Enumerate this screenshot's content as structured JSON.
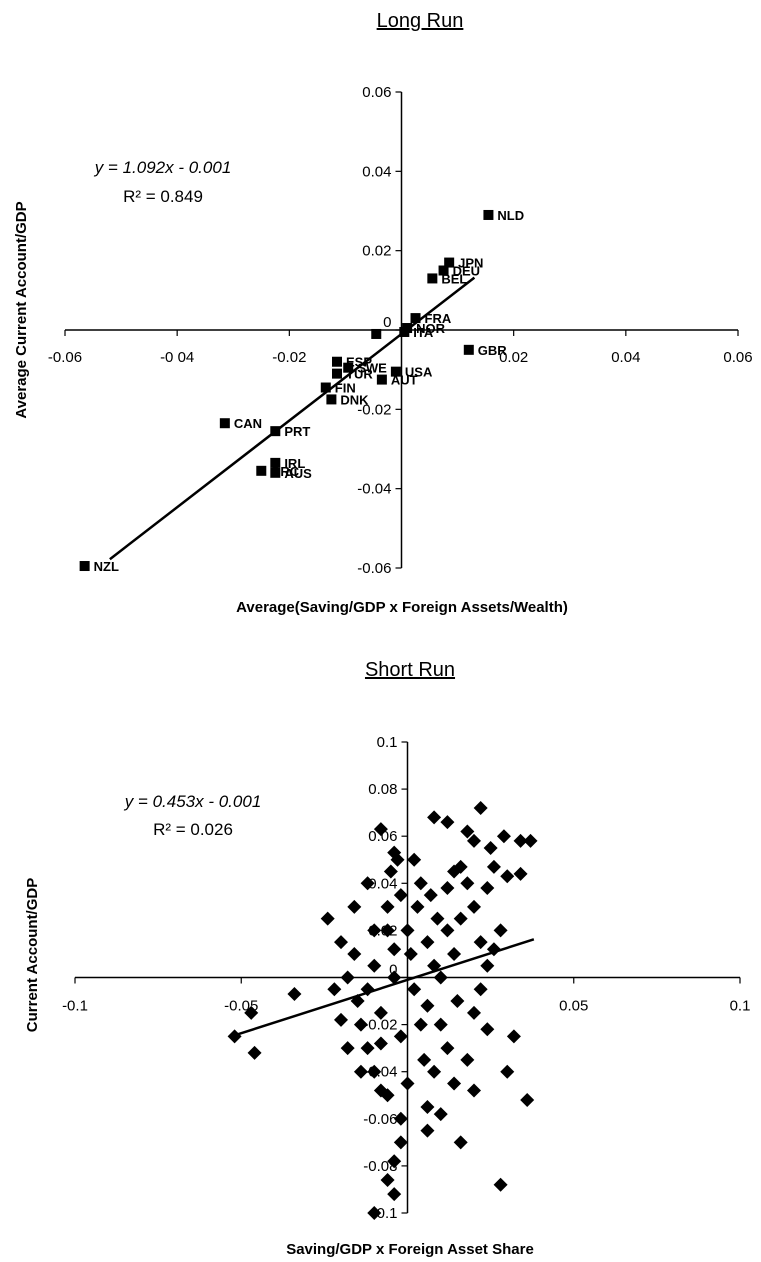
{
  "chart_data": [
    {
      "type": "scatter",
      "title": "Long Run",
      "xlabel": "Average(Saving/GDP x Foreign Assets/Wealth)",
      "ylabel": "Average Current Account/GDP",
      "xlim": [
        -0.06,
        0.06
      ],
      "ylim": [
        -0.06,
        0.06
      ],
      "x_ticks": [
        {
          "value": -0.06,
          "label": "-0.06"
        },
        {
          "value": -0.04,
          "label": "-0 04"
        },
        {
          "value": -0.02,
          "label": "-0.02"
        },
        {
          "value": 0,
          "label": "0"
        },
        {
          "value": 0.02,
          "label": "0.02"
        },
        {
          "value": 0.04,
          "label": "0.04"
        },
        {
          "value": 0.06,
          "label": "0.06"
        }
      ],
      "y_ticks": [
        {
          "value": 0.06,
          "label": "0.06"
        },
        {
          "value": 0.04,
          "label": "0.04"
        },
        {
          "value": 0.02,
          "label": "0.02"
        },
        {
          "value": 0,
          "label": "0"
        },
        {
          "value": -0.02,
          "label": "-0.02"
        },
        {
          "value": -0.04,
          "label": "-0.04"
        },
        {
          "value": -0.06,
          "label": "-0.06"
        }
      ],
      "equation": "y = 1.092x - 0.001",
      "r2": "R² = 0.849",
      "trendline": {
        "slope": 1.092,
        "intercept": -0.001,
        "x_range": [
          -0.052,
          0.013
        ]
      },
      "points": [
        {
          "label": "NLD",
          "x": 0.0155,
          "y": 0.029
        },
        {
          "label": "JPN",
          "x": 0.0085,
          "y": 0.017
        },
        {
          "label": "DEU",
          "x": 0.0075,
          "y": 0.015
        },
        {
          "label": "BEL",
          "x": 0.0055,
          "y": 0.013
        },
        {
          "label": "FRA",
          "x": 0.0025,
          "y": 0.003
        },
        {
          "label": "NOR",
          "x": 0.001,
          "y": 0.0005
        },
        {
          "label": "ITA",
          "x": 0.0005,
          "y": -0.0005
        },
        {
          "label": "",
          "x": -0.0045,
          "y": -0.001
        },
        {
          "label": "GBR",
          "x": 0.012,
          "y": -0.005
        },
        {
          "label": "ESP",
          "x": -0.0115,
          "y": -0.008
        },
        {
          "label": "SWE",
          "x": -0.0095,
          "y": -0.0095
        },
        {
          "label": "TUR",
          "x": -0.0115,
          "y": -0.011
        },
        {
          "label": "USA",
          "x": -0.001,
          "y": -0.0105
        },
        {
          "label": "AUT",
          "x": -0.0035,
          "y": -0.0125
        },
        {
          "label": "FIN",
          "x": -0.0135,
          "y": -0.0145
        },
        {
          "label": "DNK",
          "x": -0.0125,
          "y": -0.0175
        },
        {
          "label": "CAN",
          "x": -0.0315,
          "y": -0.0235
        },
        {
          "label": "PRT",
          "x": -0.0225,
          "y": -0.0255
        },
        {
          "label": "IRL",
          "x": -0.0225,
          "y": -0.0335
        },
        {
          "label": "GRC",
          "x": -0.025,
          "y": -0.0355
        },
        {
          "label": "AUS",
          "x": -0.0225,
          "y": -0.036
        },
        {
          "label": "NZL",
          "x": -0.0565,
          "y": -0.0595
        }
      ]
    },
    {
      "type": "scatter",
      "title": "Short Run",
      "xlabel": "Saving/GDP x Foreign Asset Share",
      "ylabel": "Current Account/GDP",
      "xlim": [
        -0.1,
        0.1
      ],
      "ylim": [
        -0.1,
        0.1
      ],
      "x_ticks": [
        {
          "value": -0.1,
          "label": "-0.1"
        },
        {
          "value": -0.05,
          "label": "-0.05"
        },
        {
          "value": 0.05,
          "label": "0.05"
        },
        {
          "value": 0.1,
          "label": "0.1"
        }
      ],
      "y_ticks": [
        {
          "value": 0.1,
          "label": "0.1"
        },
        {
          "value": 0.08,
          "label": "0.08"
        },
        {
          "value": 0.06,
          "label": "0.06"
        },
        {
          "value": 0.04,
          "label": "0.04"
        },
        {
          "value": 0.02,
          "label": "0.02"
        },
        {
          "value": 0,
          "label": "0"
        },
        {
          "value": -0.02,
          "label": "-0.02"
        },
        {
          "value": -0.04,
          "label": "-0.04"
        },
        {
          "value": -0.06,
          "label": "-0.06"
        },
        {
          "value": -0.08,
          "label": "-0.08"
        },
        {
          "value": -0.1,
          "label": "-0.1"
        }
      ],
      "equation": "y = 0.453x - 0.001",
      "r2": "R² = 0.026",
      "trendline": {
        "slope": 0.453,
        "intercept": -0.001,
        "x_range": [
          -0.052,
          0.038
        ]
      },
      "points": [
        {
          "x": -0.052,
          "y": -0.025
        },
        {
          "x": -0.046,
          "y": -0.032
        },
        {
          "x": -0.047,
          "y": -0.015
        },
        {
          "x": -0.034,
          "y": -0.007
        },
        {
          "x": -0.02,
          "y": -0.018
        },
        {
          "x": -0.015,
          "y": -0.01
        },
        {
          "x": -0.008,
          "y": -0.048
        },
        {
          "x": -0.005,
          "y": 0.045
        },
        {
          "x": -0.012,
          "y": 0.04
        },
        {
          "x": 0.022,
          "y": 0.072
        },
        {
          "x": 0.008,
          "y": 0.068
        },
        {
          "x": 0.012,
          "y": 0.066
        },
        {
          "x": 0.018,
          "y": 0.062
        },
        {
          "x": 0.029,
          "y": 0.06
        },
        {
          "x": 0.034,
          "y": 0.058
        },
        {
          "x": 0.037,
          "y": 0.058
        },
        {
          "x": -0.008,
          "y": 0.063
        },
        {
          "x": 0.02,
          "y": 0.058
        },
        {
          "x": 0.025,
          "y": 0.055
        },
        {
          "x": -0.004,
          "y": 0.053
        },
        {
          "x": -0.003,
          "y": 0.05
        },
        {
          "x": 0.002,
          "y": 0.05
        },
        {
          "x": 0.016,
          "y": 0.047
        },
        {
          "x": 0.026,
          "y": 0.047
        },
        {
          "x": 0.03,
          "y": 0.043
        },
        {
          "x": 0.034,
          "y": 0.044
        },
        {
          "x": 0.024,
          "y": 0.038
        },
        {
          "x": 0.02,
          "y": 0.03
        },
        {
          "x": 0.028,
          "y": 0.02
        },
        {
          "x": 0.026,
          "y": 0.012
        },
        {
          "x": 0.024,
          "y": 0.005
        },
        {
          "x": 0.022,
          "y": -0.005
        },
        {
          "x": 0.02,
          "y": -0.015
        },
        {
          "x": 0.024,
          "y": -0.022
        },
        {
          "x": 0.03,
          "y": -0.04
        },
        {
          "x": 0.02,
          "y": -0.048
        },
        {
          "x": 0.016,
          "y": -0.07
        },
        {
          "x": 0.01,
          "y": -0.058
        },
        {
          "x": 0.006,
          "y": -0.065
        },
        {
          "x": -0.002,
          "y": -0.07
        },
        {
          "x": -0.004,
          "y": -0.078
        },
        {
          "x": -0.006,
          "y": -0.086
        },
        {
          "x": -0.004,
          "y": -0.092
        },
        {
          "x": -0.01,
          "y": -0.1
        },
        {
          "x": 0.028,
          "y": -0.088
        },
        {
          "x": 0.036,
          "y": -0.052
        },
        {
          "x": 0.032,
          "y": -0.025
        },
        {
          "x": 0.012,
          "y": 0.02
        },
        {
          "x": 0.014,
          "y": 0.01
        },
        {
          "x": 0.01,
          "y": 0.0
        },
        {
          "x": 0.015,
          "y": -0.01
        },
        {
          "x": 0.012,
          "y": -0.03
        },
        {
          "x": 0.008,
          "y": -0.04
        },
        {
          "x": 0.004,
          "y": -0.02
        },
        {
          "x": 0.003,
          "y": 0.03
        },
        {
          "x": 0.007,
          "y": 0.035
        },
        {
          "x": -0.006,
          "y": 0.03
        },
        {
          "x": -0.01,
          "y": 0.02
        },
        {
          "x": -0.016,
          "y": 0.01
        },
        {
          "x": -0.018,
          "y": 0.0
        },
        {
          "x": -0.014,
          "y": -0.02
        },
        {
          "x": -0.012,
          "y": -0.03
        },
        {
          "x": -0.01,
          "y": -0.04
        },
        {
          "x": -0.006,
          "y": -0.05
        },
        {
          "x": 0.0,
          "y": -0.045
        },
        {
          "x": 0.005,
          "y": -0.035
        },
        {
          "x": -0.002,
          "y": -0.025
        },
        {
          "x": -0.008,
          "y": -0.015
        },
        {
          "x": -0.004,
          "y": 0.0
        },
        {
          "x": 0.001,
          "y": 0.01
        },
        {
          "x": 0.006,
          "y": 0.015
        },
        {
          "x": 0.009,
          "y": 0.025
        },
        {
          "x": 0.004,
          "y": 0.04
        },
        {
          "x": -0.002,
          "y": 0.035
        },
        {
          "x": -0.006,
          "y": 0.02
        },
        {
          "x": -0.01,
          "y": 0.005
        },
        {
          "x": -0.012,
          "y": -0.005
        },
        {
          "x": 0.002,
          "y": -0.005
        },
        {
          "x": 0.006,
          "y": -0.012
        },
        {
          "x": 0.01,
          "y": -0.02
        },
        {
          "x": 0.016,
          "y": 0.025
        },
        {
          "x": 0.018,
          "y": 0.04
        },
        {
          "x": 0.014,
          "y": 0.045
        },
        {
          "x": -0.016,
          "y": 0.03
        },
        {
          "x": -0.02,
          "y": 0.015
        },
        {
          "x": -0.022,
          "y": -0.005
        },
        {
          "x": -0.018,
          "y": -0.03
        },
        {
          "x": -0.014,
          "y": -0.04
        },
        {
          "x": 0.0,
          "y": 0.02
        },
        {
          "x": 0.008,
          "y": 0.005
        },
        {
          "x": -0.004,
          "y": 0.012
        },
        {
          "x": 0.012,
          "y": 0.038
        },
        {
          "x": -0.008,
          "y": -0.028
        },
        {
          "x": 0.018,
          "y": -0.035
        },
        {
          "x": 0.022,
          "y": 0.015
        },
        {
          "x": -0.024,
          "y": 0.025
        },
        {
          "x": 0.006,
          "y": -0.055
        },
        {
          "x": 0.014,
          "y": -0.045
        },
        {
          "x": -0.002,
          "y": -0.06
        }
      ]
    }
  ]
}
